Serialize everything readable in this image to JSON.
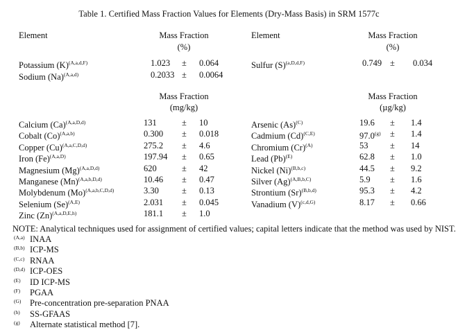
{
  "title": "Table 1.  Certified Mass Fraction Values for Elements (Dry-Mass Basis) in SRM 1577c",
  "percent_section": {
    "left_header": {
      "element": "Element",
      "quantity": "Mass Fraction",
      "unit": "(%)"
    },
    "right_header": {
      "element": "Element",
      "quantity": "Mass Fraction",
      "unit": "(%)"
    },
    "left_rows": [
      {
        "element": "Potassium (K)",
        "sup": "(A,a,d,F)",
        "value": "1.023",
        "pm": "±",
        "uncertainty": "0.064"
      },
      {
        "element": "Sodium (Na)",
        "sup": "(A,a,d)",
        "value": "0.2033",
        "pm": "±",
        "uncertainty": "0.0064"
      }
    ],
    "right_rows": [
      {
        "element": "Sulfur (S)",
        "sup": "(a,D,d,F)",
        "value": "0.749",
        "pm": "±",
        "uncertainty": "0.034"
      }
    ]
  },
  "trace_section": {
    "left_header": {
      "quantity": "Mass Fraction",
      "unit": "(mg/kg)"
    },
    "right_header": {
      "quantity": "Mass Fraction",
      "unit": "(µg/kg)"
    },
    "left_rows": [
      {
        "element": "Calcium (Ca)",
        "sup": "(A,a,D,d)",
        "value": "131",
        "pm": "±",
        "uncertainty": "10"
      },
      {
        "element": "Cobalt (Co)",
        "sup": "(A,a,b)",
        "value": "0.300",
        "pm": "±",
        "uncertainty": "0.018"
      },
      {
        "element": "Copper (Cu)",
        "sup": "(A,a,C,D,d)",
        "value": "275.2",
        "pm": "±",
        "uncertainty": "4.6"
      },
      {
        "element": "Iron (Fe)",
        "sup": "(A,a,D)",
        "value": "197.94",
        "pm": "±",
        "uncertainty": "0.65"
      },
      {
        "element": "Magnesium (Mg)",
        "sup": "(A,a,D,d)",
        "value": "620",
        "pm": "±",
        "uncertainty": "42"
      },
      {
        "element": "Manganese (Mn)",
        "sup": "(A,a,b,D,d)",
        "value": "10.46",
        "pm": "±",
        "uncertainty": "0.47"
      },
      {
        "element": "Molybdenum (Mo)",
        "sup": "(A,a,b,C,D,d)",
        "value": "3.30",
        "pm": "±",
        "uncertainty": "0.13"
      },
      {
        "element": "Selenium (Se)",
        "sup": "(A,E)",
        "value": "2.031",
        "pm": "±",
        "uncertainty": "0.045"
      },
      {
        "element": "Zinc (Zn)",
        "sup": "(A,a,D,E,h)",
        "value": "181.1",
        "pm": "±",
        "uncertainty": "1.0"
      }
    ],
    "right_rows": [
      {
        "element": "Arsenic (As)",
        "sup": "(C)",
        "value": "19.6",
        "pm": "±",
        "uncertainty": "1.4"
      },
      {
        "element": "Cadmium (Cd)",
        "sup": "(C,E)",
        "value": "97.0",
        "value_sup": "(g)",
        "pm": "±",
        "uncertainty": "1.4"
      },
      {
        "element": "Chromium (Cr)",
        "sup": "(A)",
        "value": "53",
        "pm": "±",
        "uncertainty": "14"
      },
      {
        "element": "Lead (Pb)",
        "sup": "(E)",
        "value": "62.8",
        "pm": "±",
        "uncertainty": "1.0"
      },
      {
        "element": "Nickel (Ni)",
        "sup": "(B,b,c)",
        "value": "44.5",
        "pm": "±",
        "uncertainty": "9.2"
      },
      {
        "element": "Silver (Ag)",
        "sup": "(A,B,b,C)",
        "value": "5.9",
        "pm": "±",
        "uncertainty": "1.6"
      },
      {
        "element": "Strontium (Sr)",
        "sup": "(B,b,d)",
        "value": "95.3",
        "pm": "±",
        "uncertainty": "4.2"
      },
      {
        "element": "Vanadium (V)",
        "sup": "(c,d,G)",
        "value": "8.17",
        "pm": "±",
        "uncertainty": "0.66"
      }
    ]
  },
  "note": "NOTE:  Analytical techniques used for assignment of certified values; capital letters indicate that the method was used by NIST.",
  "footnotes": [
    {
      "key": "(A,a)",
      "text": "INAA"
    },
    {
      "key": "(B,b)",
      "text": "ICP-MS"
    },
    {
      "key": "(C,c)",
      "text": "RNAA"
    },
    {
      "key": "(D,d)",
      "text": "ICP-OES"
    },
    {
      "key": "(E)",
      "text": "ID ICP-MS"
    },
    {
      "key": "(F)",
      "text": "PGAA"
    },
    {
      "key": "(G)",
      "text": "Pre-concentration pre-separation PNAA"
    },
    {
      "key": "(h)",
      "text": "SS-GFAAS"
    },
    {
      "key": "(g)",
      "text": "Alternate statistical method [7]."
    }
  ]
}
